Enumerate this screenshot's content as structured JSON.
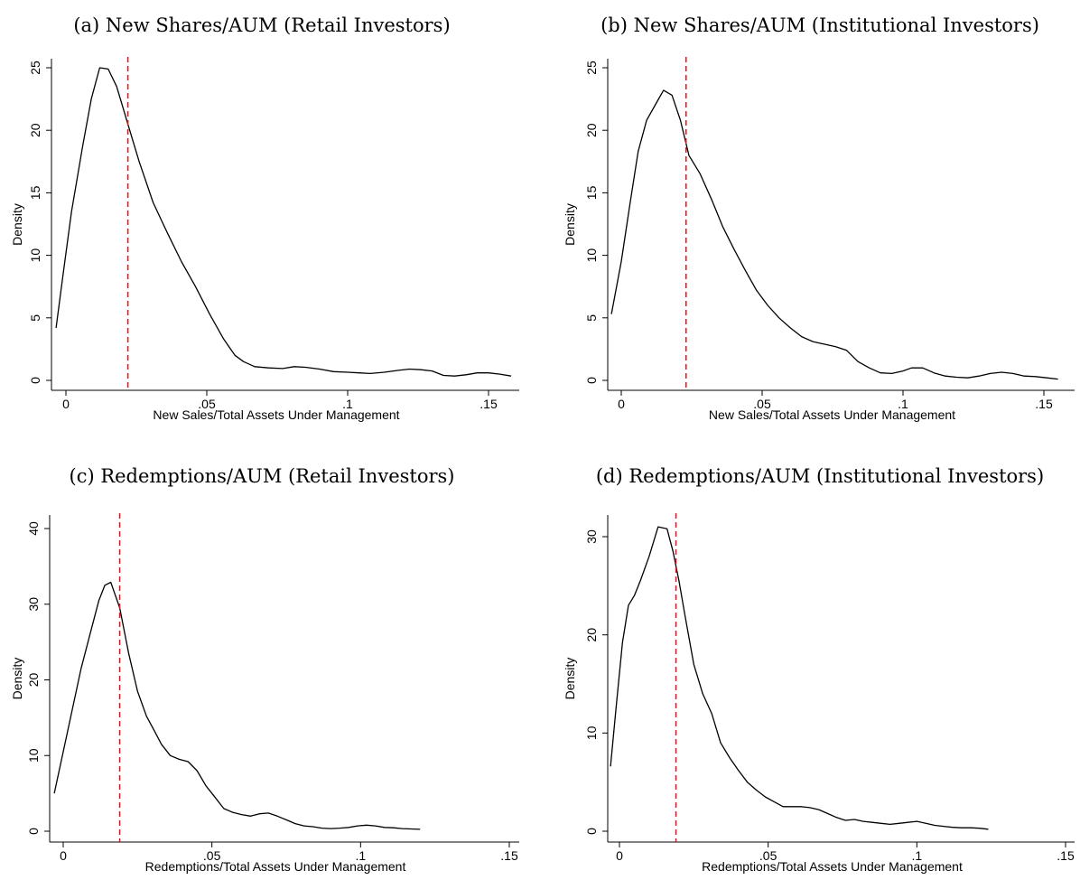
{
  "chart_data": [
    {
      "type": "line",
      "title": "(a) New Shares/AUM (Retail Investors)",
      "xlabel": "New Sales/Total Assets Under Management",
      "ylabel": "Density",
      "xlim": [
        -0.005,
        0.16
      ],
      "ylim": [
        0,
        25.5
      ],
      "xticks": [
        0,
        0.05,
        0.1,
        0.15
      ],
      "xtick_labels": [
        "0",
        ".05",
        ".1",
        ".15"
      ],
      "yticks": [
        0,
        5,
        10,
        15,
        20,
        25
      ],
      "ytick_labels": [
        "0",
        "5",
        "10",
        "15",
        "20",
        "25"
      ],
      "reference_line_x": 0.022,
      "reference_line_color": "#e8101a",
      "grid": false,
      "series": [
        {
          "x": [
            -0.0035,
            -0.001,
            0.002,
            0.006,
            0.009,
            0.012,
            0.015,
            0.018,
            0.022,
            0.026,
            0.031,
            0.036,
            0.041,
            0.046,
            0.051,
            0.056,
            0.06,
            0.063,
            0.067,
            0.072,
            0.077,
            0.081,
            0.085,
            0.09,
            0.095,
            0.1,
            0.104,
            0.108,
            0.113,
            0.118,
            0.122,
            0.126,
            0.13,
            0.134,
            0.138,
            0.142,
            0.146,
            0.15,
            0.154,
            0.158
          ],
          "y": [
            4.2,
            8.5,
            13.5,
            18.8,
            22.5,
            25.0,
            24.9,
            23.5,
            20.5,
            17.5,
            14.2,
            11.8,
            9.5,
            7.5,
            5.3,
            3.3,
            2.0,
            1.5,
            1.1,
            1.0,
            0.95,
            1.1,
            1.05,
            0.9,
            0.7,
            0.65,
            0.6,
            0.55,
            0.65,
            0.8,
            0.9,
            0.85,
            0.75,
            0.4,
            0.35,
            0.45,
            0.6,
            0.6,
            0.5,
            0.35
          ]
        }
      ]
    },
    {
      "type": "line",
      "title": "(b) New Shares/AUM (Institutional Investors)",
      "xlabel": "New Sales/Total Assets Under Management",
      "ylabel": "Density",
      "xlim": [
        -0.005,
        0.16
      ],
      "ylim": [
        0,
        25.5
      ],
      "xticks": [
        0,
        0.05,
        0.1,
        0.15
      ],
      "xtick_labels": [
        "0",
        ".05",
        ".1",
        ".15"
      ],
      "yticks": [
        0,
        5,
        10,
        15,
        20,
        25
      ],
      "ytick_labels": [
        "0",
        "5",
        "10",
        "15",
        "20",
        "25"
      ],
      "reference_line_x": 0.023,
      "reference_line_color": "#e8101a",
      "grid": false,
      "series": [
        {
          "x": [
            -0.0035,
            0.0,
            0.003,
            0.006,
            0.009,
            0.012,
            0.015,
            0.018,
            0.021,
            0.024,
            0.028,
            0.032,
            0.036,
            0.04,
            0.044,
            0.048,
            0.052,
            0.056,
            0.06,
            0.064,
            0.068,
            0.072,
            0.076,
            0.08,
            0.084,
            0.088,
            0.092,
            0.096,
            0.1,
            0.103,
            0.107,
            0.111,
            0.115,
            0.119,
            0.123,
            0.127,
            0.131,
            0.135,
            0.139,
            0.143,
            0.147,
            0.151,
            0.155
          ],
          "y": [
            5.3,
            9.5,
            14.0,
            18.3,
            20.8,
            22.0,
            23.2,
            22.8,
            20.8,
            18.0,
            16.5,
            14.5,
            12.3,
            10.5,
            8.8,
            7.2,
            6.0,
            5.0,
            4.2,
            3.5,
            3.1,
            2.9,
            2.7,
            2.4,
            1.5,
            1.0,
            0.6,
            0.55,
            0.75,
            1.0,
            1.0,
            0.6,
            0.35,
            0.25,
            0.2,
            0.35,
            0.55,
            0.65,
            0.55,
            0.35,
            0.3,
            0.2,
            0.1
          ]
        }
      ]
    },
    {
      "type": "line",
      "title": "(c) Redemptions/AUM (Retail Investors)",
      "xlabel": "Redemptions/Total Assets Under Management",
      "ylabel": "Density",
      "xlim": [
        -0.005,
        0.15
      ],
      "ylim": [
        0,
        41
      ],
      "xticks": [
        0,
        0.05,
        0.1,
        0.15
      ],
      "xtick_labels": [
        "0",
        ".05",
        ".1",
        ".15"
      ],
      "yticks": [
        0,
        10,
        20,
        30,
        40
      ],
      "ytick_labels": [
        "0",
        "10",
        "20",
        "30",
        "40"
      ],
      "reference_line_x": 0.019,
      "reference_line_color": "#e8101a",
      "grid": false,
      "series": [
        {
          "x": [
            -0.003,
            0.0,
            0.003,
            0.006,
            0.009,
            0.012,
            0.014,
            0.016,
            0.019,
            0.022,
            0.025,
            0.028,
            0.031,
            0.033,
            0.036,
            0.039,
            0.042,
            0.045,
            0.048,
            0.051,
            0.054,
            0.057,
            0.06,
            0.063,
            0.066,
            0.069,
            0.072,
            0.075,
            0.078,
            0.081,
            0.084,
            0.087,
            0.09,
            0.093,
            0.096,
            0.099,
            0.102,
            0.105,
            0.108,
            0.111,
            0.114,
            0.117,
            0.12
          ],
          "y": [
            5.0,
            10.5,
            16.0,
            21.5,
            26.0,
            30.5,
            32.5,
            32.9,
            29.5,
            23.5,
            18.5,
            15.2,
            13.0,
            11.5,
            10.0,
            9.5,
            9.2,
            8.0,
            6.0,
            4.5,
            3.0,
            2.5,
            2.2,
            2.0,
            2.3,
            2.4,
            2.0,
            1.5,
            1.0,
            0.7,
            0.6,
            0.4,
            0.35,
            0.4,
            0.5,
            0.7,
            0.8,
            0.7,
            0.5,
            0.45,
            0.35,
            0.3,
            0.25
          ]
        }
      ]
    },
    {
      "type": "line",
      "title": "(d) Redemptions/AUM (Institutional Investors)",
      "xlabel": "Redemptions/Total Assets Under Management",
      "ylabel": "Density",
      "xlim": [
        -0.005,
        0.15
      ],
      "ylim": [
        0,
        32
      ],
      "xticks": [
        0,
        0.05,
        0.1,
        0.15
      ],
      "xtick_labels": [
        "0",
        ".05",
        ".1",
        ".15"
      ],
      "yticks": [
        0,
        10,
        20,
        30
      ],
      "ytick_labels": [
        "0",
        "10",
        "20",
        "30"
      ],
      "reference_line_x": 0.019,
      "reference_line_color": "#e8101a",
      "grid": false,
      "series": [
        {
          "x": [
            -0.003,
            -0.001,
            0.001,
            0.003,
            0.005,
            0.007,
            0.01,
            0.013,
            0.016,
            0.018,
            0.02,
            0.022,
            0.025,
            0.028,
            0.031,
            0.034,
            0.037,
            0.04,
            0.043,
            0.046,
            0.049,
            0.052,
            0.055,
            0.058,
            0.061,
            0.064,
            0.067,
            0.07,
            0.073,
            0.076,
            0.079,
            0.082,
            0.085,
            0.088,
            0.091,
            0.094,
            0.097,
            0.1,
            0.103,
            0.106,
            0.109,
            0.112,
            0.115,
            0.118,
            0.121,
            0.124
          ],
          "y": [
            6.6,
            13.0,
            19.2,
            23.0,
            24.0,
            25.5,
            28.0,
            31.0,
            30.8,
            28.5,
            25.5,
            22.0,
            17.0,
            14.0,
            12.0,
            9.0,
            7.5,
            6.2,
            5.0,
            4.2,
            3.5,
            3.0,
            2.5,
            2.5,
            2.5,
            2.4,
            2.2,
            1.8,
            1.4,
            1.1,
            1.2,
            1.0,
            0.9,
            0.8,
            0.7,
            0.8,
            0.9,
            1.0,
            0.8,
            0.6,
            0.5,
            0.4,
            0.35,
            0.35,
            0.3,
            0.2
          ]
        }
      ]
    }
  ]
}
